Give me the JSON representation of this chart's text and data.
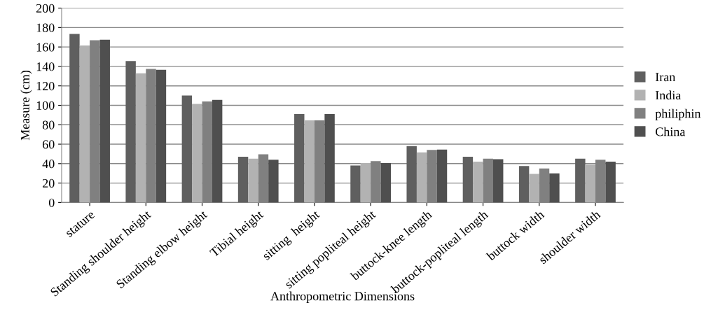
{
  "chart_data": {
    "type": "bar",
    "xlabel": "Anthropometric Dimensions",
    "ylabel": "Measure (cm)",
    "categories": [
      "stature",
      "Standing shoulder height",
      "Standing elbow height",
      "Tibial height",
      "sitting  height",
      "sitting popliteal height",
      "buttock-knee length",
      "buttock-popliteal length",
      "buttock width",
      "shoulder width"
    ],
    "series": [
      {
        "name": "Iran",
        "color": "#5f5f5f",
        "values": [
          173.5,
          145.5,
          110,
          47,
          91,
          38,
          58,
          47,
          37.5,
          45
        ]
      },
      {
        "name": "India",
        "color": "#b2b2b2",
        "values": [
          161.5,
          133,
          101.5,
          45,
          84.5,
          40.5,
          51.5,
          42,
          29.5,
          39
        ]
      },
      {
        "name": "philiphin",
        "color": "#808080",
        "values": [
          167,
          137.5,
          104,
          49.5,
          84.5,
          42.5,
          54,
          45,
          35,
          44
        ]
      },
      {
        "name": "China",
        "color": "#4f4f4f",
        "values": [
          167.5,
          136.5,
          105.5,
          44,
          91,
          40.5,
          54.5,
          44.5,
          30,
          42
        ]
      }
    ],
    "ylim": [
      0,
      200
    ],
    "yticks": [
      0,
      20,
      40,
      60,
      80,
      100,
      120,
      140,
      160,
      180,
      200
    ],
    "grid": "y",
    "legend": "right"
  }
}
